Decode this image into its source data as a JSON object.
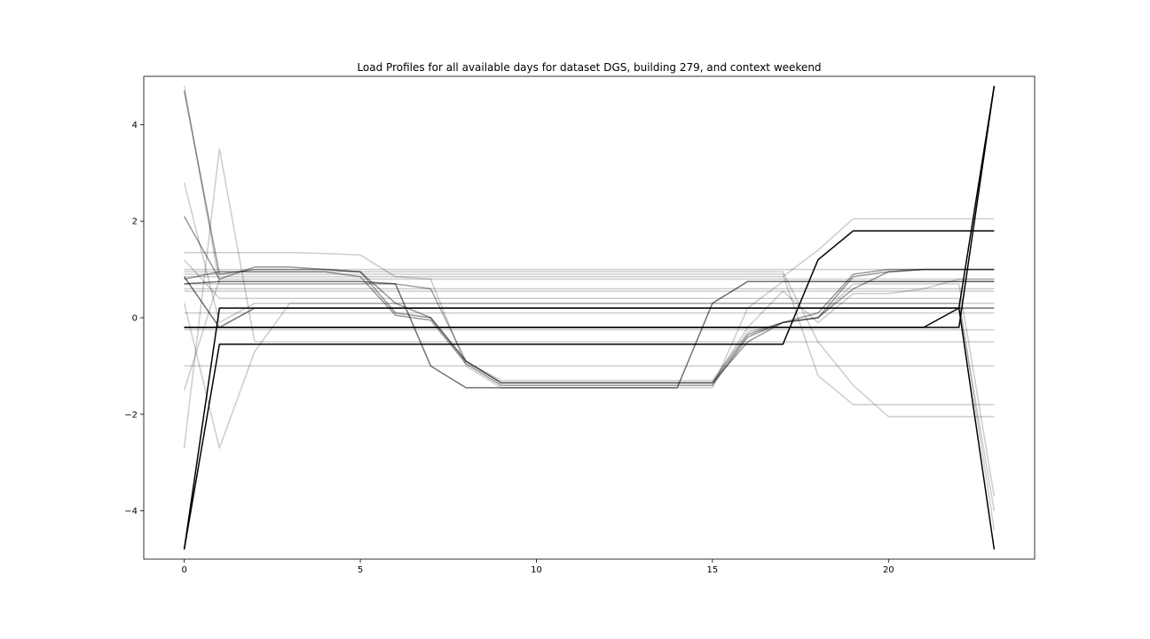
{
  "chart_data": {
    "type": "line",
    "title": "Load Profiles for all available days for dataset DGS, building 279, and context weekend",
    "xlabel": "",
    "ylabel": "",
    "xlim": [
      -1.15,
      24.15
    ],
    "ylim": [
      -5.0,
      5.0
    ],
    "xticks": [
      0,
      5,
      10,
      15,
      20
    ],
    "yticks": [
      -4,
      -2,
      0,
      2,
      4
    ],
    "ytick_labels": [
      "−4",
      "−2",
      "0",
      "2",
      "4"
    ],
    "grid": false,
    "legend": "none",
    "x": [
      0,
      1,
      2,
      3,
      4,
      5,
      6,
      7,
      8,
      9,
      10,
      11,
      12,
      13,
      14,
      15,
      16,
      17,
      18,
      19,
      20,
      21,
      22,
      23
    ],
    "series": [
      {
        "color": "#000000",
        "alpha": 0.2,
        "values": [
          4.8,
          0.7,
          0.7,
          0.7,
          0.7,
          0.7,
          0.7,
          0.6,
          -0.9,
          -1.3,
          -1.3,
          -1.3,
          -1.3,
          -1.3,
          -1.3,
          -1.3,
          -0.3,
          -0.1,
          0.0,
          0.7,
          0.7,
          0.7,
          0.7,
          -3.7
        ]
      },
      {
        "color": "#000000",
        "alpha": 0.2,
        "values": [
          2.8,
          -0.1,
          0.3,
          0.3,
          0.3,
          0.3,
          0.3,
          0.3,
          0.3,
          0.3,
          0.3,
          0.3,
          0.3,
          0.3,
          0.3,
          0.3,
          0.3,
          0.3,
          0.3,
          0.3,
          0.3,
          0.3,
          0.3,
          -4.0
        ]
      },
      {
        "color": "#000000",
        "alpha": 0.2,
        "values": [
          1.2,
          0.4,
          0.4,
          0.4,
          0.4,
          0.4,
          0.4,
          0.4,
          0.4,
          0.4,
          0.4,
          0.4,
          0.4,
          0.4,
          0.4,
          0.4,
          0.4,
          0.4,
          0.4,
          0.4,
          0.4,
          0.4,
          0.4,
          -4.4
        ]
      },
      {
        "color": "#000000",
        "alpha": 0.2,
        "values": [
          -2.7,
          3.5,
          -0.5,
          -0.5,
          -0.5,
          -0.5,
          -0.5,
          -0.5,
          -0.5,
          -0.5,
          -0.5,
          -0.5,
          -0.5,
          -0.5,
          -0.5,
          -0.5,
          -0.5,
          -0.5,
          -0.5,
          -0.5,
          -0.5,
          -0.5,
          -0.5,
          -0.5
        ]
      },
      {
        "color": "#000000",
        "alpha": 0.2,
        "values": [
          -1.5,
          0.8,
          0.8,
          0.8,
          0.8,
          0.8,
          0.8,
          0.8,
          0.8,
          0.8,
          0.8,
          0.8,
          0.8,
          0.8,
          0.8,
          0.8,
          0.8,
          0.8,
          0.8,
          0.8,
          0.8,
          0.8,
          0.8,
          0.8
        ]
      },
      {
        "color": "#000000",
        "alpha": 0.2,
        "values": [
          0.3,
          -2.7,
          -0.7,
          0.3,
          0.3,
          0.3,
          0.3,
          0.3,
          0.3,
          0.3,
          0.3,
          0.3,
          0.3,
          0.3,
          0.3,
          0.3,
          0.3,
          0.3,
          0.3,
          0.3,
          0.3,
          0.3,
          0.3,
          0.3
        ]
      },
      {
        "color": "#000000",
        "alpha": 0.2,
        "values": [
          1.0,
          1.0,
          1.0,
          1.0,
          1.0,
          1.0,
          1.0,
          1.0,
          1.0,
          1.0,
          1.0,
          1.0,
          1.0,
          1.0,
          1.0,
          1.0,
          1.0,
          1.0,
          1.0,
          1.0,
          1.0,
          1.0,
          1.0,
          1.0
        ]
      },
      {
        "color": "#000000",
        "alpha": 0.2,
        "values": [
          -1.0,
          -1.0,
          -1.0,
          -1.0,
          -1.0,
          -1.0,
          -1.0,
          -1.0,
          -1.0,
          -1.0,
          -1.0,
          -1.0,
          -1.0,
          -1.0,
          -1.0,
          -1.0,
          -1.0,
          -1.0,
          -1.0,
          -1.0,
          -1.0,
          -1.0,
          -1.0,
          -1.0
        ]
      },
      {
        "color": "#000000",
        "alpha": 0.2,
        "values": [
          0.6,
          0.6,
          0.6,
          0.6,
          0.6,
          0.6,
          0.6,
          0.6,
          0.6,
          0.6,
          0.6,
          0.6,
          0.6,
          0.6,
          0.6,
          0.6,
          0.6,
          0.6,
          0.6,
          0.6,
          0.6,
          0.6,
          0.6,
          0.6
        ]
      },
      {
        "color": "#000000",
        "alpha": 0.2,
        "values": [
          0.1,
          0.1,
          0.1,
          0.1,
          0.1,
          0.1,
          0.1,
          0.1,
          0.1,
          0.1,
          0.1,
          0.1,
          0.1,
          0.1,
          0.1,
          0.1,
          0.1,
          0.1,
          0.1,
          0.1,
          0.1,
          0.1,
          0.1,
          0.1
        ]
      },
      {
        "color": "#000000",
        "alpha": 0.2,
        "values": [
          -0.25,
          -0.25,
          -0.25,
          -0.25,
          -0.25,
          -0.25,
          -0.25,
          -0.25,
          -0.25,
          -0.25,
          -0.25,
          -0.25,
          -0.25,
          -0.25,
          -0.25,
          -0.25,
          -0.25,
          -0.25,
          -0.25,
          -0.25,
          -0.25,
          -0.25,
          -0.25,
          -0.25
        ]
      },
      {
        "color": "#000000",
        "alpha": 0.2,
        "values": [
          1.35,
          1.35,
          1.35,
          1.35,
          1.33,
          1.3,
          0.85,
          0.8,
          -1.0,
          -1.45,
          -1.45,
          -1.45,
          -1.45,
          -1.45,
          -1.45,
          -1.45,
          0.2,
          0.75,
          0.75,
          0.75,
          0.75,
          0.75,
          0.75,
          0.75
        ]
      },
      {
        "color": "#000000",
        "alpha": 0.2,
        "values": [
          0.9,
          0.9,
          0.9,
          0.9,
          0.9,
          0.9,
          0.9,
          0.9,
          0.9,
          0.9,
          0.9,
          0.9,
          0.9,
          0.9,
          0.9,
          0.9,
          0.9,
          0.9,
          -1.2,
          -1.8,
          -1.8,
          -1.8,
          -1.8,
          -1.8
        ]
      },
      {
        "color": "#000000",
        "alpha": 0.2,
        "values": [
          0.85,
          0.85,
          0.85,
          0.85,
          0.85,
          0.85,
          0.85,
          0.85,
          0.85,
          0.85,
          0.85,
          0.85,
          0.85,
          0.85,
          0.85,
          0.85,
          0.85,
          0.85,
          1.4,
          2.05,
          2.05,
          2.05,
          2.05,
          2.05
        ]
      },
      {
        "color": "#000000",
        "alpha": 0.2,
        "values": [
          0.95,
          0.95,
          0.95,
          0.95,
          0.95,
          0.95,
          0.95,
          0.95,
          0.95,
          0.95,
          0.95,
          0.95,
          0.95,
          0.95,
          0.95,
          0.95,
          0.95,
          0.95,
          -0.5,
          -1.4,
          -2.05,
          -2.05,
          -2.05,
          -2.05
        ]
      },
      {
        "color": "#000000",
        "alpha": 0.2,
        "values": [
          0.55,
          0.55,
          0.55,
          0.55,
          0.55,
          0.55,
          0.55,
          0.55,
          0.55,
          0.55,
          0.55,
          0.55,
          0.55,
          0.55,
          0.55,
          0.55,
          0.55,
          0.55,
          0.55,
          0.55,
          0.55,
          0.55,
          0.55,
          0.55
        ]
      },
      {
        "color": "#000000",
        "alpha": 0.2,
        "values": [
          0.7,
          0.7,
          0.7,
          0.7,
          0.7,
          0.7,
          0.7,
          0.6,
          -0.9,
          -1.35,
          -1.35,
          -1.35,
          -1.35,
          -1.35,
          -1.35,
          -1.35,
          -0.2,
          0.55,
          -0.1,
          0.5,
          0.5,
          0.6,
          0.8,
          0.8
        ]
      },
      {
        "color": "#000000",
        "alpha": 0.4,
        "values": [
          4.7,
          0.9,
          1.0,
          1.0,
          1.0,
          0.95,
          0.3,
          0.0,
          -0.9,
          -1.35,
          -1.35,
          -1.35,
          -1.35,
          -1.35,
          -1.35,
          -1.35,
          -0.35,
          -0.1,
          0.0,
          0.6,
          0.95,
          1.0,
          1.0,
          1.0
        ]
      },
      {
        "color": "#000000",
        "alpha": 0.4,
        "values": [
          2.1,
          0.8,
          1.05,
          1.05,
          1.0,
          0.95,
          0.1,
          0.0,
          -0.9,
          -1.35,
          -1.35,
          -1.35,
          -1.35,
          -1.35,
          -1.35,
          -1.35,
          -0.5,
          -0.1,
          0.1,
          0.9,
          1.0,
          1.0,
          1.0,
          1.0
        ]
      },
      {
        "color": "#000000",
        "alpha": 0.4,
        "values": [
          0.8,
          0.95,
          0.95,
          0.95,
          0.95,
          0.85,
          0.05,
          -0.05,
          -0.95,
          -1.4,
          -1.4,
          -1.4,
          -1.4,
          -1.4,
          -1.4,
          -1.4,
          -0.4,
          -0.1,
          0.0,
          0.85,
          0.95,
          1.0,
          1.0,
          1.0
        ]
      },
      {
        "color": "#000000",
        "alpha": 0.55,
        "values": [
          0.85,
          -0.2,
          0.2,
          0.2,
          0.2,
          0.2,
          0.2,
          0.2,
          0.2,
          0.2,
          0.2,
          0.2,
          0.2,
          0.2,
          0.2,
          0.2,
          0.2,
          0.2,
          0.2,
          0.2,
          0.2,
          0.2,
          0.2,
          0.2
        ]
      },
      {
        "color": "#000000",
        "alpha": 0.55,
        "values": [
          0.7,
          0.75,
          0.75,
          0.75,
          0.75,
          0.75,
          0.7,
          -1.0,
          -1.45,
          -1.45,
          -1.45,
          -1.45,
          -1.45,
          -1.45,
          -1.45,
          0.3,
          0.75,
          0.75,
          0.75,
          0.75,
          0.75,
          0.75,
          0.75,
          0.75
        ]
      },
      {
        "color": "#000000",
        "alpha": 1.0,
        "values": [
          -4.8,
          0.2,
          0.2,
          0.2,
          0.2,
          0.2,
          0.2,
          0.2,
          0.2,
          0.2,
          0.2,
          0.2,
          0.2,
          0.2,
          0.2,
          0.2,
          0.2,
          0.2,
          0.2,
          0.2,
          0.2,
          0.2,
          0.2,
          4.8
        ]
      },
      {
        "color": "#000000",
        "alpha": 1.0,
        "values": [
          -4.8,
          -0.55,
          -0.55,
          -0.55,
          -0.55,
          -0.55,
          -0.55,
          -0.55,
          -0.55,
          -0.55,
          -0.55,
          -0.55,
          -0.55,
          -0.55,
          -0.55,
          -0.55,
          -0.55,
          -0.55,
          1.2,
          1.8,
          1.8,
          1.8,
          1.8,
          1.8
        ]
      },
      {
        "color": "#000000",
        "alpha": 1.0,
        "values": [
          -0.2,
          -0.2,
          -0.2,
          -0.2,
          -0.2,
          -0.2,
          -0.2,
          -0.2,
          -0.2,
          -0.2,
          -0.2,
          -0.2,
          -0.2,
          -0.2,
          -0.2,
          -0.2,
          -0.2,
          -0.2,
          -0.2,
          -0.2,
          -0.2,
          -0.2,
          -0.2,
          4.8
        ]
      },
      {
        "color": "#000000",
        "alpha": 1.0,
        "values": [
          -0.2,
          -0.2,
          -0.2,
          -0.2,
          -0.2,
          -0.2,
          -0.2,
          -0.2,
          -0.2,
          -0.2,
          -0.2,
          -0.2,
          -0.2,
          -0.2,
          -0.2,
          -0.2,
          -0.2,
          -0.2,
          -0.2,
          -0.2,
          -0.2,
          -0.2,
          0.2,
          -4.8
        ]
      }
    ]
  }
}
